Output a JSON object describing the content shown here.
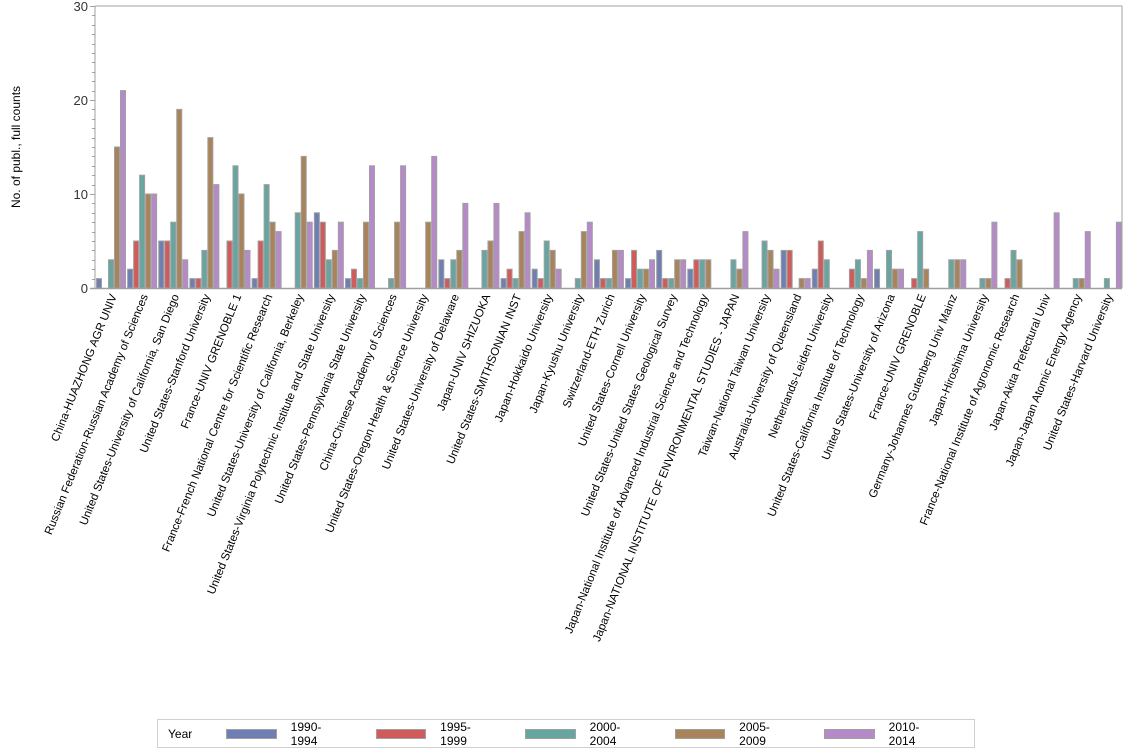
{
  "chart_data": {
    "type": "bar",
    "title": "",
    "xlabel": "",
    "ylabel": "No. of publ., full counts",
    "ylim": [
      0,
      30
    ],
    "yticks": [
      0,
      10,
      20,
      30
    ],
    "grid": false,
    "legend": {
      "title": "Year",
      "position": "bottom"
    },
    "categories": [
      "China-HUAZHONG AGR UNIV",
      "Russian Federation-Russian Academy of Sciences",
      "United States-University of California, San Diego",
      "United States-Stanford University",
      "France-UNIV GRENOBLE 1",
      "France-French National Centre for Scientific Research",
      "United States-University of California, Berkeley",
      "United States-Virginia Polytechnic Institute and State University",
      "United States-Pennsylvania State University",
      "China-Chinese Academy of Sciences",
      "United States-Oregon Health & Science University",
      "United States-University of Delaware",
      "Japan-UNIV SHIZUOKA",
      "United States-SMITHSONIAN INST",
      "Japan-Hokkaido University",
      "Japan-Kyushu University",
      "Switzerland-ETH Zurich",
      "United States-Cornell University",
      "United States-United States Geological Survey",
      "Japan-National Institute of Advanced Industrial Science and Technology",
      "Japan-NATIONAL INSTITUTE OF ENVIRONMENTAL STUDIES - JAPAN",
      "Taiwan-National Taiwan University",
      "Australia-University of Queensland",
      "Netherlands-Leiden University",
      "United States-California Institute of Technology",
      "United States-University of Arizona",
      "France-UNIV GRENOBLE",
      "Germany-Johannes Gutenberg Univ Mainz",
      "Japan-Hiroshima University",
      "France-National Institute of Agronomic Research",
      "Japan-Akita Prefectural Univ",
      "Japan-Japan Atomic Energy Agency",
      "United States-Harvard University"
    ],
    "series": [
      {
        "name": "1990-1994",
        "color": "#6f7eb3",
        "values": [
          1,
          2,
          5,
          1,
          0,
          1,
          0,
          8,
          1,
          0,
          0,
          3,
          0,
          1,
          2,
          0,
          3,
          1,
          4,
          2,
          0,
          0,
          4,
          2,
          0,
          2,
          0,
          0,
          0,
          0,
          0,
          0,
          0
        ]
      },
      {
        "name": "1995-1999",
        "color": "#d05b5b",
        "values": [
          0,
          5,
          5,
          1,
          5,
          5,
          0,
          7,
          2,
          0,
          0,
          1,
          0,
          2,
          1,
          0,
          1,
          4,
          1,
          3,
          0,
          0,
          4,
          5,
          2,
          0,
          1,
          0,
          0,
          1,
          0,
          0,
          0
        ]
      },
      {
        "name": "2000-2004",
        "color": "#66a5a0",
        "values": [
          3,
          12,
          7,
          4,
          13,
          11,
          8,
          3,
          1,
          1,
          0,
          3,
          4,
          1,
          5,
          1,
          1,
          2,
          1,
          3,
          3,
          5,
          0,
          3,
          3,
          4,
          6,
          3,
          1,
          4,
          0,
          1,
          1
        ]
      },
      {
        "name": "2005-2009",
        "color": "#a9845b",
        "values": [
          15,
          10,
          19,
          16,
          10,
          7,
          14,
          4,
          7,
          7,
          7,
          4,
          5,
          6,
          4,
          6,
          4,
          2,
          3,
          3,
          2,
          4,
          1,
          0,
          1,
          2,
          2,
          3,
          1,
          3,
          0,
          1,
          0
        ]
      },
      {
        "name": "2010-2014",
        "color": "#b689c9",
        "values": [
          21,
          10,
          3,
          11,
          4,
          6,
          7,
          7,
          13,
          13,
          14,
          9,
          9,
          8,
          2,
          7,
          4,
          3,
          3,
          0,
          6,
          2,
          1,
          0,
          4,
          2,
          0,
          3,
          7,
          0,
          8,
          6,
          7
        ]
      }
    ]
  }
}
